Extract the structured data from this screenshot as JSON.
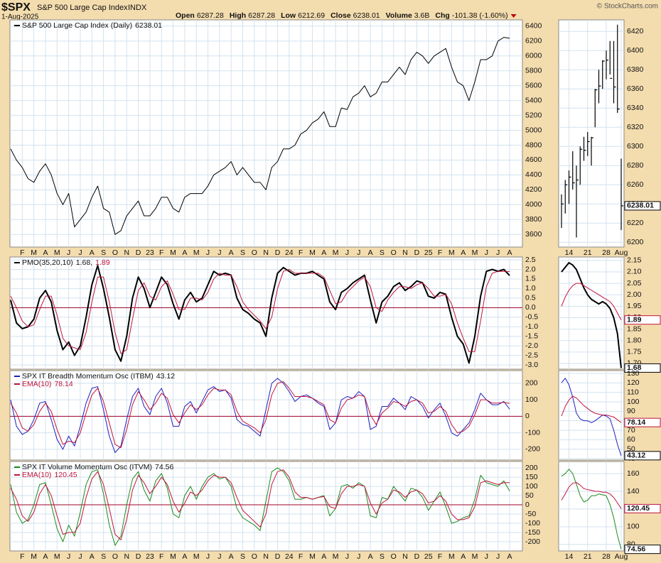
{
  "header": {
    "symbol": "$SPX",
    "name": "S&P 500 Large Cap Index",
    "exchange": "INDX",
    "date": "1-Aug-2025",
    "quote": [
      {
        "label": "Open",
        "value": 6287.28
      },
      {
        "label": "High",
        "value": 6287.28
      },
      {
        "label": "Low",
        "value": 6212.69
      },
      {
        "label": "Close",
        "value": 6238.01
      },
      {
        "label": "Volume",
        "value": "3.6B"
      },
      {
        "label": "Chg",
        "value": "-101.38 (-1.60%)"
      }
    ],
    "copyright": "© StockCharts.com"
  },
  "chart_data": [
    {
      "type": "line",
      "grid": true,
      "x_axis_labels": true,
      "categories": [
        null,
        null,
        "F",
        null,
        "M",
        null,
        "A",
        null,
        "M",
        null,
        "J",
        null,
        "J",
        null,
        "A",
        null,
        "S",
        null,
        "O",
        null,
        "N",
        null,
        "D",
        null,
        "23",
        null,
        "F",
        null,
        "M",
        null,
        "A",
        null,
        "M",
        null,
        "J",
        null,
        "J",
        null,
        "A",
        null,
        "S",
        null,
        "O",
        null,
        "N",
        null,
        "D",
        null,
        "24",
        null,
        "F",
        null,
        "M",
        null,
        "A",
        null,
        "M",
        null,
        "J",
        null,
        "J",
        null,
        "A",
        null,
        "S",
        null,
        "O",
        null,
        "N",
        null,
        "D",
        null,
        "25",
        null,
        "F",
        null,
        "M",
        null,
        "A",
        null,
        "M",
        null,
        "J",
        null,
        "J",
        null,
        "A"
      ],
      "series": [
        {
          "name": "S&P 500 Large Cap Index (Daily)",
          "color": "#000000",
          "values": [
            4750,
            4600,
            4500,
            4350,
            4300,
            4450,
            4550,
            4400,
            4150,
            4000,
            4150,
            3700,
            3800,
            3900,
            4100,
            4250,
            3950,
            3900,
            3600,
            3650,
            3850,
            3950,
            4050,
            3850,
            3850,
            3950,
            4100,
            4100,
            3950,
            3900,
            4100,
            4150,
            4150,
            4150,
            4250,
            4400,
            4450,
            4500,
            4580,
            4400,
            4500,
            4400,
            4300,
            4300,
            4200,
            4500,
            4580,
            4750,
            4750,
            4800,
            4950,
            5000,
            5100,
            5150,
            5250,
            5050,
            5050,
            5300,
            5280,
            5450,
            5500,
            5600,
            5450,
            5500,
            5650,
            5650,
            5750,
            5850,
            5750,
            5950,
            6050,
            6000,
            5900,
            6000,
            6050,
            6100,
            5850,
            5650,
            5600,
            5400,
            5650,
            5950,
            5950,
            6000,
            6200,
            6250,
            6238.01
          ]
        }
      ],
      "ylim": [
        3430,
        6485
      ],
      "yticks": [
        3600,
        3800,
        4000,
        4200,
        4400,
        4600,
        4800,
        5000,
        5200,
        5400,
        5600,
        5800,
        6000,
        6200,
        6400
      ]
    },
    {
      "type": "line",
      "grid": true,
      "hline": 0,
      "hline_color": "#a0002a",
      "series": [
        {
          "name": "PMO(35,20,10)",
          "legend_label": "1.68,",
          "color": "#000000",
          "line_width": 2,
          "values": [
            0.4,
            -0.8,
            -1.1,
            -1.0,
            -0.6,
            0.5,
            0.9,
            0.3,
            -1.2,
            -2.2,
            -1.8,
            -2.5,
            -2.0,
            -0.5,
            1.2,
            2.2,
            1.0,
            -0.5,
            -2.2,
            -2.8,
            -1.5,
            0.5,
            1.6,
            1.0,
            0.0,
            0.8,
            1.6,
            1.2,
            0.2,
            -0.6,
            0.4,
            0.8,
            0.3,
            0.5,
            1.2,
            1.9,
            1.7,
            1.8,
            1.7,
            0.5,
            -0.1,
            -0.3,
            -0.6,
            -0.8,
            -1.5,
            0.5,
            1.8,
            2.1,
            1.9,
            1.7,
            1.8,
            1.8,
            1.9,
            1.7,
            1.5,
            0.3,
            -0.1,
            0.8,
            1.0,
            1.3,
            1.5,
            1.7,
            0.4,
            -0.8,
            0.3,
            0.6,
            1.1,
            1.3,
            0.9,
            1.1,
            1.4,
            1.3,
            0.6,
            0.5,
            0.8,
            0.7,
            -0.5,
            -1.5,
            -1.9,
            -2.9,
            -1.5,
            0.6,
            1.9,
            2.0,
            1.9,
            2.0,
            1.68
          ]
        },
        {
          "legend_label": "1.89",
          "color": "#c0143c",
          "values": [
            0.6,
            0.0,
            -0.7,
            -1.0,
            -0.9,
            -0.1,
            0.6,
            0.6,
            -0.4,
            -1.6,
            -2.0,
            -2.1,
            -2.2,
            -1.3,
            0.3,
            1.6,
            1.6,
            0.3,
            -1.3,
            -2.4,
            -2.2,
            -0.6,
            0.9,
            1.3,
            0.6,
            0.4,
            1.1,
            1.4,
            0.7,
            -0.1,
            -0.1,
            0.5,
            0.5,
            0.4,
            0.8,
            1.5,
            1.8,
            1.7,
            1.7,
            1.1,
            0.3,
            -0.1,
            -0.4,
            -0.7,
            -1.1,
            -0.5,
            1.0,
            1.9,
            2.0,
            1.8,
            1.8,
            1.8,
            1.8,
            1.8,
            1.6,
            0.9,
            0.2,
            0.3,
            0.8,
            1.1,
            1.4,
            1.6,
            1.1,
            0.0,
            -0.2,
            0.4,
            0.8,
            1.1,
            1.1,
            1.0,
            1.2,
            1.3,
            1.0,
            0.6,
            0.6,
            0.7,
            0.2,
            -0.8,
            -1.6,
            -2.3,
            -2.3,
            -0.7,
            1.1,
            1.8,
            1.9,
            1.9,
            1.89
          ]
        }
      ],
      "ylim": [
        -3.22,
        2.65
      ],
      "yticks": [
        2.5,
        {
          "value": 2,
          "label": "2.0"
        },
        1.5,
        {
          "value": 1,
          "label": "1.0"
        },
        0.5,
        {
          "value": 0,
          "label": "0.0"
        },
        -0.5,
        {
          "value": -1,
          "label": "-1.0"
        },
        -1.5,
        {
          "value": -2,
          "label": "-2.0"
        },
        -2.5,
        {
          "value": -3,
          "label": "-3.0"
        }
      ]
    },
    {
      "type": "line",
      "grid": true,
      "hline": 0,
      "hline_color": "#a0002a",
      "series": [
        {
          "name": "SPX IT Breadth Momentum Osc (ITBM)",
          "color": "#1f1fbf",
          "values": [
            100,
            -60,
            -110,
            -90,
            -20,
            80,
            90,
            -20,
            -140,
            -200,
            -120,
            -180,
            -60,
            80,
            170,
            180,
            40,
            -120,
            -220,
            -180,
            -20,
            120,
            170,
            60,
            10,
            120,
            170,
            80,
            -60,
            -60,
            60,
            90,
            20,
            90,
            160,
            180,
            150,
            160,
            110,
            -20,
            -50,
            -60,
            -90,
            -120,
            40,
            200,
            230,
            200,
            150,
            90,
            120,
            130,
            110,
            80,
            60,
            -80,
            -40,
            100,
            120,
            110,
            150,
            120,
            -80,
            -60,
            60,
            60,
            110,
            80,
            40,
            120,
            100,
            60,
            -10,
            40,
            80,
            0,
            -100,
            -120,
            -80,
            -40,
            40,
            140,
            100,
            70,
            70,
            90,
            43.12
          ]
        },
        {
          "name": "EMA(10)",
          "color": "#c0143c",
          "values": [
            80,
            20,
            -70,
            -90,
            -50,
            30,
            80,
            30,
            -80,
            -170,
            -150,
            -160,
            -100,
            20,
            130,
            170,
            90,
            -40,
            -170,
            -190,
            -80,
            70,
            150,
            100,
            40,
            80,
            140,
            110,
            10,
            -40,
            20,
            70,
            40,
            70,
            130,
            170,
            160,
            160,
            130,
            30,
            -30,
            -50,
            -70,
            -100,
            -20,
            130,
            200,
            210,
            170,
            120,
            120,
            120,
            110,
            90,
            70,
            -20,
            -40,
            50,
            100,
            110,
            130,
            120,
            10,
            -50,
            20,
            50,
            90,
            80,
            60,
            90,
            100,
            80,
            20,
            30,
            60,
            30,
            -50,
            -100,
            -90,
            -60,
            10,
            100,
            100,
            80,
            80,
            85,
            78.14
          ]
        }
      ],
      "ylim": [
        -265,
        277
      ],
      "yticks": [
        -200,
        -100,
        0,
        100,
        200
      ]
    },
    {
      "type": "line",
      "grid": true,
      "hline": 0,
      "hline_color": "#a0002a",
      "x_axis_labels": true,
      "series": [
        {
          "name": "SPX IT Volume Momentum Osc (ITVM)",
          "color": "#1a8a1a",
          "values": [
            110,
            -40,
            -100,
            -80,
            0,
            110,
            120,
            0,
            -130,
            -200,
            -110,
            -170,
            -40,
            110,
            180,
            190,
            60,
            -110,
            -220,
            -170,
            0,
            140,
            180,
            80,
            20,
            130,
            170,
            90,
            -50,
            -70,
            50,
            100,
            30,
            100,
            150,
            170,
            140,
            150,
            100,
            -20,
            -70,
            -90,
            -110,
            -140,
            20,
            180,
            200,
            180,
            130,
            30,
            30,
            40,
            30,
            40,
            50,
            -60,
            -20,
            100,
            110,
            90,
            120,
            100,
            -60,
            -70,
            40,
            30,
            100,
            60,
            20,
            90,
            80,
            40,
            -30,
            20,
            70,
            -10,
            -100,
            -90,
            -70,
            -60,
            30,
            160,
            120,
            110,
            100,
            130,
            74.56
          ]
        },
        {
          "name": "EMA(10)",
          "color": "#c0143c",
          "values": [
            90,
            30,
            -60,
            -90,
            -40,
            60,
            110,
            50,
            -60,
            -160,
            -150,
            -150,
            -100,
            40,
            140,
            180,
            110,
            -20,
            -160,
            -190,
            -80,
            80,
            160,
            120,
            60,
            100,
            150,
            110,
            20,
            -40,
            10,
            70,
            50,
            80,
            130,
            160,
            150,
            150,
            120,
            40,
            -30,
            -60,
            -90,
            -120,
            -50,
            110,
            180,
            190,
            150,
            70,
            40,
            40,
            30,
            40,
            45,
            -10,
            -20,
            60,
            100,
            100,
            110,
            100,
            10,
            -50,
            10,
            30,
            80,
            70,
            40,
            70,
            80,
            60,
            10,
            20,
            50,
            20,
            -50,
            -80,
            -80,
            -70,
            -10,
            120,
            130,
            120,
            110,
            120,
            120.45
          ]
        }
      ],
      "ylim": [
        -250,
        235
      ],
      "yticks": [
        -200,
        -150,
        -100,
        -50,
        0,
        50,
        100,
        150,
        200
      ]
    },
    {
      "type": "ohlc",
      "grid": true,
      "x_axis_labels": true,
      "color": "#000000",
      "categories": [
        null,
        null,
        "14",
        null,
        null,
        null,
        null,
        "21",
        null,
        null,
        null,
        null,
        "28",
        null,
        null,
        null,
        "Aug"
      ],
      "high": [
        6250,
        6265,
        6275,
        6295,
        6280,
        6300,
        6310,
        6315,
        6310,
        6360,
        6380,
        6390,
        6400,
        6410,
        6410,
        6427,
        6287.28
      ],
      "low": [
        6215,
        6230,
        6240,
        6255,
        6205,
        6260,
        6285,
        6290,
        6280,
        6320,
        6345,
        6360,
        6370,
        6375,
        6345,
        6335,
        6212.69
      ],
      "close": [
        6240,
        6260,
        6268,
        6262,
        6265,
        6297,
        6296,
        6305,
        6309,
        6359,
        6363,
        6389,
        6390,
        6371,
        6362,
        6339,
        6238.01
      ],
      "ylim": [
        6195,
        6432
      ],
      "yticks": [
        6200,
        6220,
        6240,
        6260,
        6280,
        6300,
        6320,
        6340,
        6360,
        6380,
        6400,
        6420
      ]
    },
    {
      "type": "line",
      "grid": true,
      "series": [
        {
          "color": "#000000",
          "line_width": 2,
          "values": [
            2.1,
            2.12,
            2.14,
            2.13,
            2.11,
            2.07,
            2.03,
            2.0,
            1.98,
            1.97,
            1.96,
            1.97,
            1.96,
            1.94,
            1.9,
            1.83,
            1.68
          ]
        },
        {
          "color": "#c0143c",
          "values": [
            1.95,
            1.99,
            2.02,
            2.04,
            2.05,
            2.05,
            2.04,
            2.03,
            2.02,
            2.01,
            2.0,
            1.99,
            1.98,
            1.97,
            1.95,
            1.92,
            1.89
          ]
        }
      ],
      "ylim": [
        1.675,
        2.165
      ],
      "yticks": [
        {
          "value": 1.7,
          "label": "1.70"
        },
        1.75,
        {
          "value": 1.8,
          "label": "1.80"
        },
        1.85,
        {
          "value": 1.9,
          "label": "1.90"
        },
        1.95,
        {
          "value": 2,
          "label": "2.00"
        },
        2.05,
        {
          "value": 2.1,
          "label": "2.10"
        },
        2.15
      ]
    },
    {
      "type": "line",
      "grid": true,
      "series": [
        {
          "color": "#1f1fbf",
          "values": [
            120,
            125,
            118,
            105,
            88,
            82,
            80,
            80,
            78,
            80,
            83,
            86,
            85,
            82,
            70,
            55,
            43.12
          ]
        },
        {
          "color": "#c0143c",
          "values": [
            85,
            95,
            102,
            106,
            104,
            100,
            96,
            93,
            90,
            88,
            87,
            86,
            86,
            85,
            84,
            81,
            78.14
          ]
        }
      ],
      "ylim": [
        38.5,
        133
      ],
      "yticks": [
        40,
        50,
        60,
        70,
        80,
        90,
        100,
        110,
        120,
        130
      ]
    },
    {
      "type": "line",
      "grid": true,
      "x_axis_labels": true,
      "series": [
        {
          "color": "#1a8a1a",
          "values": [
            157,
            160,
            165,
            160,
            148,
            135,
            128,
            130,
            135,
            135,
            137,
            136,
            135,
            125,
            110,
            90,
            74.56
          ]
        },
        {
          "color": "#c0143c",
          "values": [
            130,
            137,
            145,
            149,
            150,
            147,
            143,
            142,
            141,
            140,
            140,
            139,
            139,
            137,
            133,
            127,
            120.45
          ]
        }
      ],
      "ylim": [
        72.7,
        173.7
      ],
      "yticks": [
        80,
        100,
        120,
        140,
        160
      ]
    }
  ]
}
